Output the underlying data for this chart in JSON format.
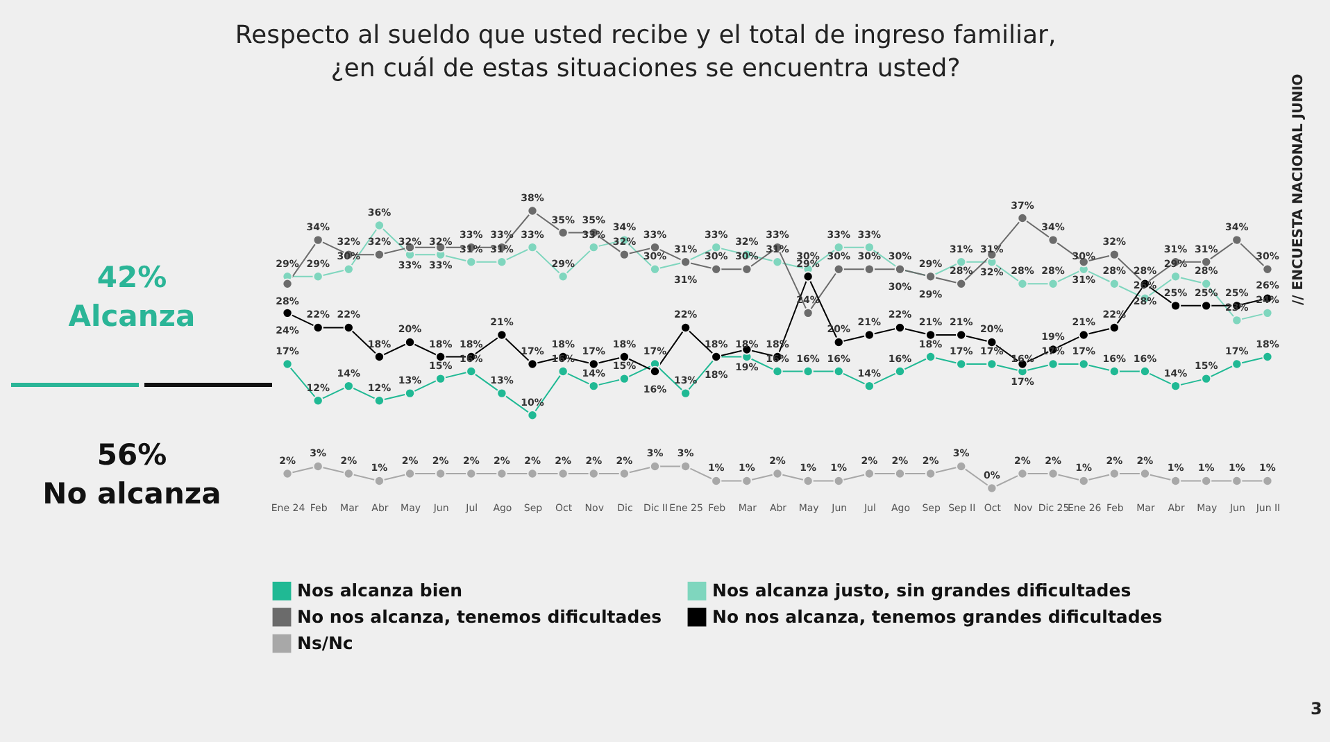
{
  "chart_data": {
    "type": "line",
    "title": "Respecto al sueldo que usted recibe y el total de ingreso familiar,\n¿en cuál de estas situaciones se encuentra usted?",
    "categories": [
      "Ene 24",
      "Feb",
      "Mar",
      "Abr",
      "May",
      "Jun",
      "Jul",
      "Ago",
      "Sep",
      "Oct",
      "Nov",
      "Dic",
      "Dic II",
      "Ene 25",
      "Feb",
      "Mar",
      "Abr",
      "May",
      "Jun",
      "Jul",
      "Ago",
      "Sep",
      "Sep II",
      "Oct",
      "Nov",
      "Dic 25",
      "Ene 26",
      "Feb",
      "Mar",
      "Abr",
      "May",
      "Jun",
      "Jun II"
    ],
    "tick_labels": "x",
    "legend": "bottom",
    "marker": "circle",
    "grid": false,
    "series": [
      {
        "name": "Nos alcanza bien",
        "color": "#20b994",
        "values": [
          17,
          12,
          14,
          12,
          13,
          15,
          16,
          13,
          10,
          16,
          14,
          15,
          17,
          13,
          18,
          18,
          16,
          16,
          16,
          14,
          16,
          18,
          17,
          17,
          16,
          17,
          17,
          16,
          16,
          14,
          15,
          17,
          18
        ],
        "value_labels": [
          "17%",
          "12%",
          "14%",
          "12%",
          "13%",
          "15%",
          "16%",
          "13%",
          "10%",
          "16%",
          "14%",
          "15%",
          "17%",
          "13%",
          "18%",
          "18%",
          "16%",
          "16%",
          "16%",
          "14%",
          "16%",
          "18%",
          "17%",
          "17%",
          "16%",
          "17%",
          "17%",
          "16%",
          "16%",
          "14%",
          "15%",
          "17%",
          "18%"
        ]
      },
      {
        "name": "Nos alcanza justo, sin grandes dificultades",
        "color": "#7fd6be",
        "values": [
          29,
          29,
          30,
          36,
          32,
          32,
          31,
          31,
          33,
          29,
          33,
          34,
          30,
          31,
          33,
          32,
          31,
          30,
          33,
          33,
          30,
          29,
          31,
          31,
          28,
          28,
          30,
          28,
          26,
          29,
          28,
          23,
          24
        ],
        "value_labels": [
          "29%",
          "29%",
          "30%",
          "36%",
          "32%",
          "32%",
          "31%",
          "31%",
          "33%",
          "29%",
          "33%",
          "34%",
          "30%",
          "31%",
          "33%",
          "32%",
          "31%",
          "30%",
          "33%",
          "33%",
          "30%",
          "29%",
          "31%",
          "31%",
          "28%",
          "28%",
          "30%",
          "28%",
          "26%",
          "29%",
          "28%",
          "23%",
          "24%"
        ]
      },
      {
        "name": "No nos alcanza, tenemos dificultades",
        "color": "#6b6b6b",
        "values": [
          28,
          34,
          32,
          32,
          33,
          33,
          33,
          33,
          38,
          35,
          35,
          32,
          33,
          31,
          30,
          30,
          33,
          24,
          30,
          30,
          30,
          29,
          28,
          32,
          37,
          34,
          31,
          32,
          28,
          31,
          31,
          34,
          30
        ],
        "value_labels": [
          "28%",
          "34%",
          "32%",
          "32%",
          "33%",
          "33%",
          "33%",
          "33%",
          "38%",
          "35%",
          "35%",
          "32%",
          "33%",
          "31%",
          "30%",
          "30%",
          "33%",
          "24%",
          "30%",
          "30%",
          "30%",
          "29%",
          "28%",
          "32%",
          "37%",
          "34%",
          "31%",
          "32%",
          "28%",
          "31%",
          "31%",
          "34%",
          "30%"
        ]
      },
      {
        "name": "No nos alcanza, tenemos grandes dificultades",
        "color": "#000000",
        "values": [
          24,
          22,
          22,
          18,
          20,
          18,
          18,
          21,
          17,
          18,
          17,
          18,
          16,
          22,
          18,
          19,
          18,
          29,
          20,
          21,
          22,
          21,
          21,
          20,
          17,
          19,
          21,
          22,
          28,
          25,
          25,
          25,
          26
        ],
        "value_labels": [
          "24%",
          "22%",
          "22%",
          "18%",
          "20%",
          "18%",
          "18%",
          "21%",
          "17%",
          "18%",
          "17%",
          "18%",
          "16%",
          "22%",
          "18%",
          "19%",
          "18%",
          "29%",
          "20%",
          "21%",
          "22%",
          "21%",
          "21%",
          "20%",
          "17%",
          "19%",
          "21%",
          "22%",
          "28%",
          "25%",
          "25%",
          "25%",
          "26%"
        ]
      },
      {
        "name": "Ns/Nc",
        "color": "#a8a8a8",
        "values": [
          2,
          3,
          2,
          1,
          2,
          2,
          2,
          2,
          2,
          2,
          2,
          2,
          3,
          3,
          1,
          1,
          2,
          1,
          1,
          2,
          2,
          2,
          3,
          0,
          2,
          2,
          1,
          2,
          2,
          1,
          1,
          1,
          1
        ],
        "value_labels": [
          "2%",
          "3%",
          "2%",
          "1%",
          "2%",
          "2%",
          "2%",
          "2%",
          "2%",
          "2%",
          "2%",
          "2%",
          "3%",
          "3%",
          "1%",
          "1%",
          "2%",
          "1%",
          "1%",
          "2%",
          "2%",
          "2%",
          "3%",
          "0%",
          "2%",
          "2%",
          "1%",
          "2%",
          "2%",
          "1%",
          "1%",
          "1%",
          "1%"
        ]
      }
    ],
    "annotations": [
      "42%\nAlcanza",
      "56%\nNo alcanza",
      "// ENCUESTA NACIONAL JUNIO",
      "3"
    ]
  }
}
